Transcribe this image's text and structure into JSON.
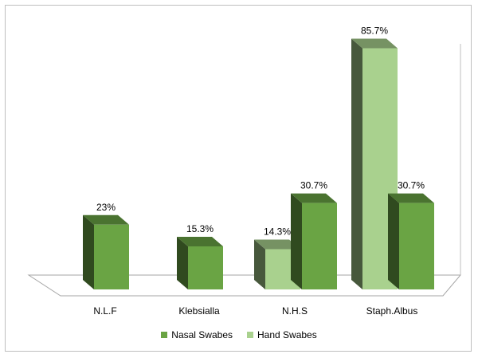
{
  "chart_data": {
    "type": "bar",
    "categories": [
      "N.L.F",
      "Klebsialla",
      "N.H.S",
      "Staph.Albus"
    ],
    "series": [
      {
        "name": "Nasal Swabes",
        "values": [
          23,
          15.3,
          30.7,
          30.7
        ],
        "labels": [
          "23%",
          "15.3%",
          "30.7%",
          "30.7%"
        ],
        "color": "#6aa444"
      },
      {
        "name": "Hand Swabes",
        "values": [
          null,
          null,
          14.3,
          85.7
        ],
        "labels": [
          null,
          null,
          "14.3%",
          "85.7%"
        ],
        "color": "#a9d18e"
      }
    ],
    "ylim": [
      0,
      100
    ],
    "grid": false,
    "legend": "bottom"
  }
}
